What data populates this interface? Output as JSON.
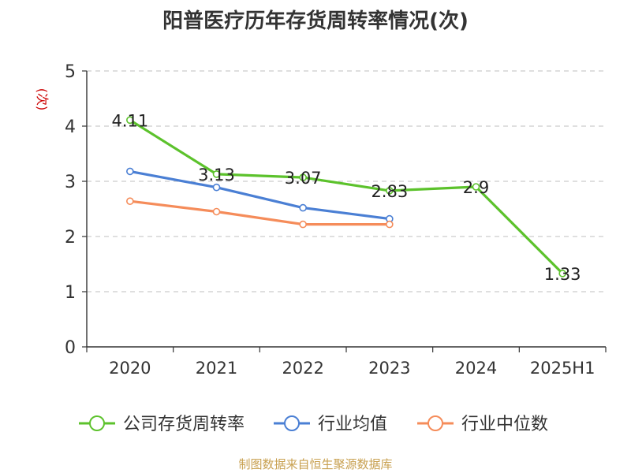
{
  "chart_data": {
    "type": "line",
    "title": "阳普医疗历年存货周转率情况(次)",
    "ylabel": "(次)",
    "xlabel": "",
    "categories": [
      "2020",
      "2021",
      "2022",
      "2023",
      "2024",
      "2025H1"
    ],
    "ylim": [
      0,
      5
    ],
    "yticks": [
      0,
      1,
      2,
      3,
      4,
      5
    ],
    "grid": true,
    "legend_position": "bottom",
    "series": [
      {
        "name": "公司存货周转率",
        "color": "#5cc22c",
        "values": [
          4.11,
          3.13,
          3.07,
          2.83,
          2.9,
          1.33
        ],
        "labels": [
          "4.11",
          "3.13",
          "3.07",
          "2.83",
          "2.9",
          "1.33"
        ]
      },
      {
        "name": "行业均值",
        "color": "#4a7fd4",
        "values": [
          3.18,
          2.89,
          2.52,
          2.32,
          null,
          null
        ]
      },
      {
        "name": "行业中位数",
        "color": "#f58c5a",
        "values": [
          2.64,
          2.45,
          2.22,
          2.22,
          null,
          null
        ]
      }
    ]
  },
  "source": "制图数据来自恒生聚源数据库",
  "colors": {
    "title": "#333333",
    "ylabel": "#cc0000",
    "source": "#c8a050",
    "axis": "#333333",
    "grid": "#cccccc"
  }
}
